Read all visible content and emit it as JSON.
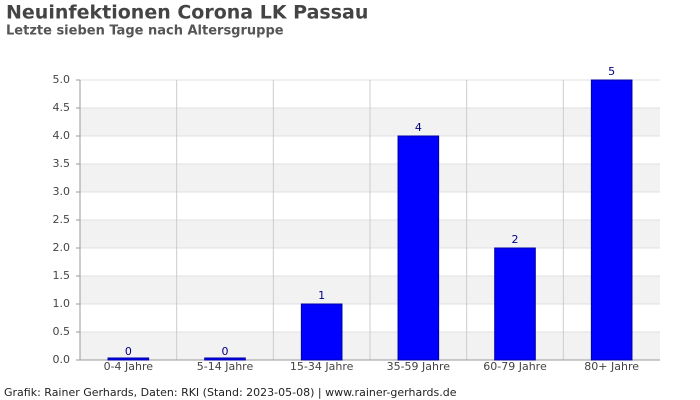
{
  "chart_data": {
    "type": "bar",
    "title": "Neuinfektionen Corona LK Passau",
    "subtitle": "Letzte sieben Tage nach Altersgruppe",
    "categories": [
      "0-4 Jahre",
      "5-14 Jahre",
      "15-34 Jahre",
      "35-59 Jahre",
      "60-79 Jahre",
      "80+ Jahre"
    ],
    "values": [
      0,
      0,
      1,
      4,
      2,
      5
    ],
    "color": "#0000ff",
    "ylim": [
      0,
      5
    ],
    "yticks": [
      {
        "value": 0,
        "label": "0.0"
      },
      0.5,
      {
        "value": 1,
        "label": "1.0"
      },
      1.5,
      {
        "value": 2,
        "label": "2.0"
      },
      2.5,
      {
        "value": 3,
        "label": "3.0"
      },
      3.5,
      {
        "value": 4,
        "label": "4.0"
      },
      4.5,
      {
        "value": 5,
        "label": "5.0"
      }
    ],
    "grid": true,
    "source": "Grafik: Rainer Gerhards, Daten: RKI (Stand: 2023-05-08) | www.rainer-gerhards.de"
  }
}
